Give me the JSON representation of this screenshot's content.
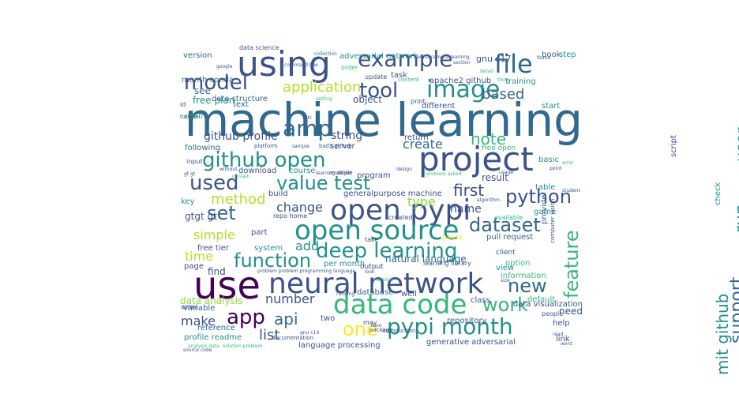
{
  "palette": {
    "purple": "#440154",
    "indigo": "#3b528b",
    "blue": "#31688e",
    "teal": "#21908d",
    "green": "#35b779",
    "lime": "#90d743",
    "yellow": "#fde725"
  },
  "words": [
    {
      "text": "machine learning",
      "size": 58,
      "color": "#31688e",
      "rot": 0
    },
    {
      "text": "using",
      "size": 44,
      "color": "#3b528b",
      "rot": 0
    },
    {
      "text": "use",
      "size": 48,
      "color": "#440154",
      "rot": 0
    },
    {
      "text": "neural network",
      "size": 36,
      "color": "#3b528b",
      "rot": 0
    },
    {
      "text": "project",
      "size": 42,
      "color": "#3b528b",
      "rot": 0
    },
    {
      "text": "open pypi",
      "size": 36,
      "color": "#3b528b",
      "rot": 0
    },
    {
      "text": "open source",
      "size": 34,
      "color": "#21908d",
      "rot": 0
    },
    {
      "text": "data code",
      "size": 34,
      "color": "#35b779",
      "rot": 0
    },
    {
      "text": "example",
      "size": 28,
      "color": "#3b528b",
      "rot": 0
    },
    {
      "text": "file",
      "size": 32,
      "color": "#31688e",
      "rot": 0
    },
    {
      "text": "image",
      "size": 30,
      "color": "#21908d",
      "rot": 0
    },
    {
      "text": "model",
      "size": 26,
      "color": "#3b528b",
      "rot": 0
    },
    {
      "text": "tool",
      "size": 26,
      "color": "#3b528b",
      "rot": 0
    },
    {
      "text": "amp",
      "size": 28,
      "color": "#31688e",
      "rot": 0
    },
    {
      "text": "github open",
      "size": 26,
      "color": "#21908d",
      "rot": 0
    },
    {
      "text": "used",
      "size": 26,
      "color": "#3b528b",
      "rot": 0
    },
    {
      "text": "value test",
      "size": 24,
      "color": "#21908d",
      "rot": 0
    },
    {
      "text": "deep learning",
      "size": 26,
      "color": "#21908d",
      "rot": 0
    },
    {
      "text": "pypi month",
      "size": 28,
      "color": "#21908d",
      "rot": 0
    },
    {
      "text": "python",
      "size": 24,
      "color": "#3b528b",
      "rot": 0
    },
    {
      "text": "dataset",
      "size": 24,
      "color": "#31688e",
      "rot": 0
    },
    {
      "text": "function",
      "size": 24,
      "color": "#21908d",
      "rot": 0
    },
    {
      "text": "app",
      "size": 26,
      "color": "#440154",
      "rot": 0
    },
    {
      "text": "work",
      "size": 24,
      "color": "#35b779",
      "rot": 0
    },
    {
      "text": "new",
      "size": 24,
      "color": "#31688e",
      "rot": 0
    },
    {
      "text": "one",
      "size": 24,
      "color": "#fde725",
      "rot": 0
    },
    {
      "text": "set",
      "size": 24,
      "color": "#31688e",
      "rot": 0
    },
    {
      "text": "method",
      "size": 18,
      "color": "#b5de2b",
      "rot": 0
    },
    {
      "text": "first",
      "size": 20,
      "color": "#3b528b",
      "rot": 0
    },
    {
      "text": "note",
      "size": 20,
      "color": "#35b779",
      "rot": 0
    },
    {
      "text": "application",
      "size": 18,
      "color": "#b5de2b",
      "rot": 0
    },
    {
      "text": "feature",
      "size": 24,
      "color": "#35b779",
      "rot": 90
    },
    {
      "text": "user",
      "size": 20,
      "color": "#21908d",
      "rot": 90
    },
    {
      "text": "run",
      "size": 22,
      "color": "#21908d",
      "rot": 90
    },
    {
      "text": "support",
      "size": 22,
      "color": "#31688e",
      "rot": 90
    },
    {
      "text": "mit github",
      "size": 20,
      "color": "#21908d",
      "rot": 90
    },
    {
      "text": "based",
      "size": 18,
      "color": "#31688e",
      "rot": 0
    },
    {
      "text": "create",
      "size": 16,
      "color": "#31688e",
      "rot": 0
    },
    {
      "text": "github profile",
      "size": 14,
      "color": "#3b528b",
      "rot": 0
    },
    {
      "text": "string",
      "size": 14,
      "color": "#3b528b",
      "rot": 0
    },
    {
      "text": "change",
      "size": 16,
      "color": "#3b528b",
      "rot": 0
    },
    {
      "text": "type",
      "size": 16,
      "color": "#90d743",
      "rot": 0
    },
    {
      "text": "simple",
      "size": 16,
      "color": "#b5de2b",
      "rot": 0
    },
    {
      "text": "add",
      "size": 16,
      "color": "#21908d",
      "rot": 0
    },
    {
      "text": "time",
      "size": 16,
      "color": "#b5de2b",
      "rot": 0
    },
    {
      "text": "number",
      "size": 16,
      "color": "#3b528b",
      "rot": 0
    },
    {
      "text": "api",
      "size": 20,
      "color": "#31688e",
      "rot": 0
    },
    {
      "text": "make",
      "size": 16,
      "color": "#3b528b",
      "rot": 0
    },
    {
      "text": "list",
      "size": 18,
      "color": "#3b528b",
      "rot": 0
    },
    {
      "text": "name",
      "size": 14,
      "color": "#3b528b",
      "rot": 0
    },
    {
      "text": "result",
      "size": 12,
      "color": "#3b528b",
      "rot": 0
    },
    {
      "text": "need",
      "size": 12,
      "color": "#3b528b",
      "rot": 0
    },
    {
      "text": "gtgt gt",
      "size": 12,
      "color": "#3b528b",
      "rot": 0
    },
    {
      "text": "free plan",
      "size": 12,
      "color": "#21908d",
      "rot": 0
    },
    {
      "text": "see",
      "size": 12,
      "color": "#31688e",
      "rot": 0
    },
    {
      "text": "month conda",
      "size": 10,
      "color": "#31688e",
      "rot": 0
    },
    {
      "text": "version",
      "size": 10,
      "color": "#31688e",
      "rot": 0
    },
    {
      "text": "data science",
      "size": 8,
      "color": "#3b528b",
      "rot": 0
    },
    {
      "text": "adversarial network",
      "size": 10,
      "color": "#21908d",
      "rot": 0
    },
    {
      "text": "gnu c17",
      "size": 11,
      "color": "#3b528b",
      "rot": 0
    },
    {
      "text": "book",
      "size": 10,
      "color": "#31688e",
      "rot": 0
    },
    {
      "text": "step",
      "size": 10,
      "color": "#21908d",
      "rot": 0
    },
    {
      "text": "apache2 github",
      "size": 10,
      "color": "#3b528b",
      "rot": 0
    },
    {
      "text": "training",
      "size": 10,
      "color": "#21908d",
      "rot": 0
    },
    {
      "text": "task",
      "size": 10,
      "color": "#3b528b",
      "rot": 0
    },
    {
      "text": "data structure",
      "size": 10,
      "color": "#31688e",
      "rot": 0
    },
    {
      "text": "object",
      "size": 12,
      "color": "#3b528b",
      "rot": 0
    },
    {
      "text": "text",
      "size": 10,
      "color": "#31688e",
      "rot": 0
    },
    {
      "text": "different",
      "size": 10,
      "color": "#3b528b",
      "rot": 0
    },
    {
      "text": "start",
      "size": 10,
      "color": "#21908d",
      "rot": 0
    },
    {
      "text": "following",
      "size": 10,
      "color": "#31688e",
      "rot": 0
    },
    {
      "text": "server",
      "size": 10,
      "color": "#3b528b",
      "rot": 0
    },
    {
      "text": "return",
      "size": 10,
      "color": "#3b528b",
      "rot": 0
    },
    {
      "text": "free open",
      "size": 9,
      "color": "#35b779",
      "rot": 0
    },
    {
      "text": "download",
      "size": 10,
      "color": "#3b528b",
      "rot": 0
    },
    {
      "text": "course",
      "size": 10,
      "color": "#21908d",
      "rot": 0
    },
    {
      "text": "program",
      "size": 10,
      "color": "#3b528b",
      "rot": 0
    },
    {
      "text": "basic",
      "size": 10,
      "color": "#21908d",
      "rot": 0
    },
    {
      "text": "build",
      "size": 10,
      "color": "#3b528b",
      "rot": 0
    },
    {
      "text": "generalpurpose machine",
      "size": 10,
      "color": "#3b528b",
      "rot": 0
    },
    {
      "text": "table",
      "size": 10,
      "color": "#21908d",
      "rot": 0
    },
    {
      "text": "key",
      "size": 10,
      "color": "#21908d",
      "rot": 0
    },
    {
      "text": "repo home",
      "size": 8,
      "color": "#3b528b",
      "rot": 0
    },
    {
      "text": "game",
      "size": 10,
      "color": "#21908d",
      "rot": 0
    },
    {
      "text": "created",
      "size": 8,
      "color": "#3b528b",
      "rot": 0
    },
    {
      "text": "available",
      "size": 8,
      "color": "#35b779",
      "rot": 0
    },
    {
      "text": "part",
      "size": 10,
      "color": "#3b528b",
      "rot": 0
    },
    {
      "text": "paper",
      "size": 9,
      "color": "#fde725",
      "rot": 0
    },
    {
      "text": "pull request",
      "size": 10,
      "color": "#31688e",
      "rot": 0
    },
    {
      "text": "take",
      "size": 8,
      "color": "#3b528b",
      "rot": 0
    },
    {
      "text": "free tier",
      "size": 10,
      "color": "#3b528b",
      "rot": 0
    },
    {
      "text": "system",
      "size": 10,
      "color": "#21908d",
      "rot": 0
    },
    {
      "text": "client",
      "size": 9,
      "color": "#3b528b",
      "rot": 0
    },
    {
      "text": "option",
      "size": 10,
      "color": "#35b779",
      "rot": 0
    },
    {
      "text": "page",
      "size": 10,
      "color": "#3b528b",
      "rot": 0
    },
    {
      "text": "find",
      "size": 12,
      "color": "#3b528b",
      "rot": 0
    },
    {
      "text": "per month",
      "size": 10,
      "color": "#21908d",
      "rot": 0
    },
    {
      "text": "natural language",
      "size": 12,
      "color": "#31688e",
      "rot": 0
    },
    {
      "text": "view",
      "size": 10,
      "color": "#21908d",
      "rot": 0
    },
    {
      "text": "information",
      "size": 10,
      "color": "#35b779",
      "rot": 0
    },
    {
      "text": "output",
      "size": 9,
      "color": "#3b528b",
      "rot": 0
    },
    {
      "text": "learning library",
      "size": 8,
      "color": "#3b528b",
      "rot": 0
    },
    {
      "text": "data analysis",
      "size": 12,
      "color": "#90d743",
      "rot": 0
    },
    {
      "text": "data visualization",
      "size": 10,
      "color": "#3b528b",
      "rot": 0
    },
    {
      "text": "database",
      "size": 10,
      "color": "#31688e",
      "rot": 0
    },
    {
      "text": "well",
      "size": 10,
      "color": "#3b528b",
      "rot": 0
    },
    {
      "text": "variable",
      "size": 10,
      "color": "#31688e",
      "rot": 0
    },
    {
      "text": "class",
      "size": 10,
      "color": "#3b528b",
      "rot": 0
    },
    {
      "text": "default",
      "size": 10,
      "color": "#35b779",
      "rot": 0
    },
    {
      "text": "reference",
      "size": 10,
      "color": "#31688e",
      "rot": 0
    },
    {
      "text": "repository",
      "size": 10,
      "color": "#3b528b",
      "rot": 0
    },
    {
      "text": "help",
      "size": 10,
      "color": "#3b528b",
      "rot": 0
    },
    {
      "text": "profile readme",
      "size": 10,
      "color": "#21908d",
      "rot": 0
    },
    {
      "text": "language processing",
      "size": 10,
      "color": "#3b528b",
      "rot": 0
    },
    {
      "text": "generative adversarial",
      "size": 10,
      "color": "#3b528b",
      "rot": 0
    },
    {
      "text": "people",
      "size": 8,
      "color": "#3b528b",
      "rot": 0
    },
    {
      "text": "link",
      "size": 10,
      "color": "#3b528b",
      "rot": 0
    },
    {
      "text": "may",
      "size": 8,
      "color": "#3b528b",
      "rot": 0
    },
    {
      "text": "array",
      "size": 8,
      "color": "#3b528b",
      "rot": 0
    },
    {
      "text": "print",
      "size": 8,
      "color": "#3b528b",
      "rot": 0
    },
    {
      "text": "two",
      "size": 10,
      "color": "#3b528b",
      "rot": 0
    },
    {
      "text": "input",
      "size": 8,
      "color": "#3b528b",
      "rot": 0
    },
    {
      "text": "video",
      "size": 9,
      "color": "#35b779",
      "rot": 0
    },
    {
      "text": "id",
      "size": 8,
      "color": "#3b528b",
      "rot": 0
    },
    {
      "text": "platform",
      "size": 7,
      "color": "#3b528b",
      "rot": 0
    },
    {
      "text": "sample",
      "size": 6,
      "color": "#3b528b",
      "rot": 0
    },
    {
      "text": "bsd3 github",
      "size": 7,
      "color": "#3b528b",
      "rot": 0
    },
    {
      "text": "computer vision",
      "size": 7,
      "color": "#3b528b",
      "rot": 90
    },
    {
      "text": "provide",
      "size": 10,
      "color": "#31688e",
      "rot": 90
    },
    {
      "text": "check",
      "size": 10,
      "color": "#21908d",
      "rot": 90
    },
    {
      "text": "script",
      "size": 10,
      "color": "#3b528b",
      "rot": 90
    },
    {
      "text": "resource",
      "size": 8,
      "color": "#35b779",
      "rot": 90
    },
    {
      "text": "reinforcement learning",
      "size": 6,
      "color": "#3b528b",
      "rot": 0
    },
    {
      "text": "collection",
      "size": 6,
      "color": "#31688e",
      "rot": 0
    },
    {
      "text": "command line",
      "size": 6,
      "color": "#3b528b",
      "rot": 0
    },
    {
      "text": "order",
      "size": 8,
      "color": "#35b779",
      "rot": 0
    },
    {
      "text": "update",
      "size": 8,
      "color": "#3b528b",
      "rot": 0
    },
    {
      "text": "content",
      "size": 7,
      "color": "#35b779",
      "rot": 0
    },
    {
      "text": "tutorial",
      "size": 7,
      "color": "#3b528b",
      "rot": 0
    },
    {
      "text": "source code",
      "size": 6,
      "color": "#3b528b",
      "rot": 0
    },
    {
      "text": "solution problem",
      "size": 6,
      "color": "#35b779",
      "rot": 0
    },
    {
      "text": "analysis data",
      "size": 6,
      "color": "#35b779",
      "rot": 0
    },
    {
      "text": "documentation",
      "size": 7,
      "color": "#3b528b",
      "rot": 0
    },
    {
      "text": "gnu c14",
      "size": 6,
      "color": "#3b528b",
      "rot": 0
    },
    {
      "text": "package",
      "size": 7,
      "color": "#3b528b",
      "rot": 0
    },
    {
      "text": "introduction",
      "size": 7,
      "color": "#3b528b",
      "rot": 0
    },
    {
      "text": "multiple",
      "size": 7,
      "color": "#3b528b",
      "rot": 0
    },
    {
      "text": "learning model",
      "size": 6,
      "color": "#3b528b",
      "rot": 0
    },
    {
      "text": "problem asked",
      "size": 6,
      "color": "#35b779",
      "rot": 0
    },
    {
      "text": "algorithm",
      "size": 6,
      "color": "#3b528b",
      "rot": 0
    },
    {
      "text": "student",
      "size": 6,
      "color": "#3b528b",
      "rot": 0
    },
    {
      "text": "usage",
      "size": 6,
      "color": "#3b528b",
      "rot": 0
    },
    {
      "text": "point",
      "size": 6,
      "color": "#3b528b",
      "rot": 0
    },
    {
      "text": "problem problem programming language",
      "size": 6,
      "color": "#3b528b",
      "rot": 0
    },
    {
      "text": "running",
      "size": 6,
      "color": "#3b528b",
      "rot": 0
    },
    {
      "text": "instance",
      "size": 6,
      "color": "#35b779",
      "rot": 0
    },
    {
      "text": "look",
      "size": 6,
      "color": "#3b528b",
      "rot": 0
    },
    {
      "text": "without",
      "size": 6,
      "color": "#3b528b",
      "rot": 0
    },
    {
      "text": "contain",
      "size": 6,
      "color": "#35b779",
      "rot": 0
    },
    {
      "text": "section",
      "size": 6,
      "color": "#3b528b",
      "rot": 0
    },
    {
      "text": "detail",
      "size": 6,
      "color": "#35b779",
      "rot": 0
    },
    {
      "text": "found",
      "size": 6,
      "color": "#3b528b",
      "rot": 0
    },
    {
      "text": "google",
      "size": 6,
      "color": "#3b528b",
      "rot": 0
    },
    {
      "text": "item",
      "size": 6,
      "color": "#3b528b",
      "rot": 0
    },
    {
      "text": "read",
      "size": 6,
      "color": "#3b528b",
      "rot": 0
    },
    {
      "text": "word",
      "size": 6,
      "color": "#3b528b",
      "rot": 0
    },
    {
      "text": "gt gt",
      "size": 6,
      "color": "#3b528b",
      "rot": 0
    },
    {
      "text": "etc",
      "size": 6,
      "color": "#3b528b",
      "rot": 0
    },
    {
      "text": "design",
      "size": 6,
      "color": "#3b528b",
      "rot": 0
    },
    {
      "text": "size",
      "size": 6,
      "color": "#3b528b",
      "rot": 0
    },
    {
      "text": "error",
      "size": 6,
      "color": "#35b779",
      "rot": 0
    },
    {
      "text": "thing",
      "size": 6,
      "color": "#35b779",
      "rot": 0
    },
    {
      "text": "setting",
      "size": 6,
      "color": "#35b779",
      "rot": 0
    }
  ]
}
